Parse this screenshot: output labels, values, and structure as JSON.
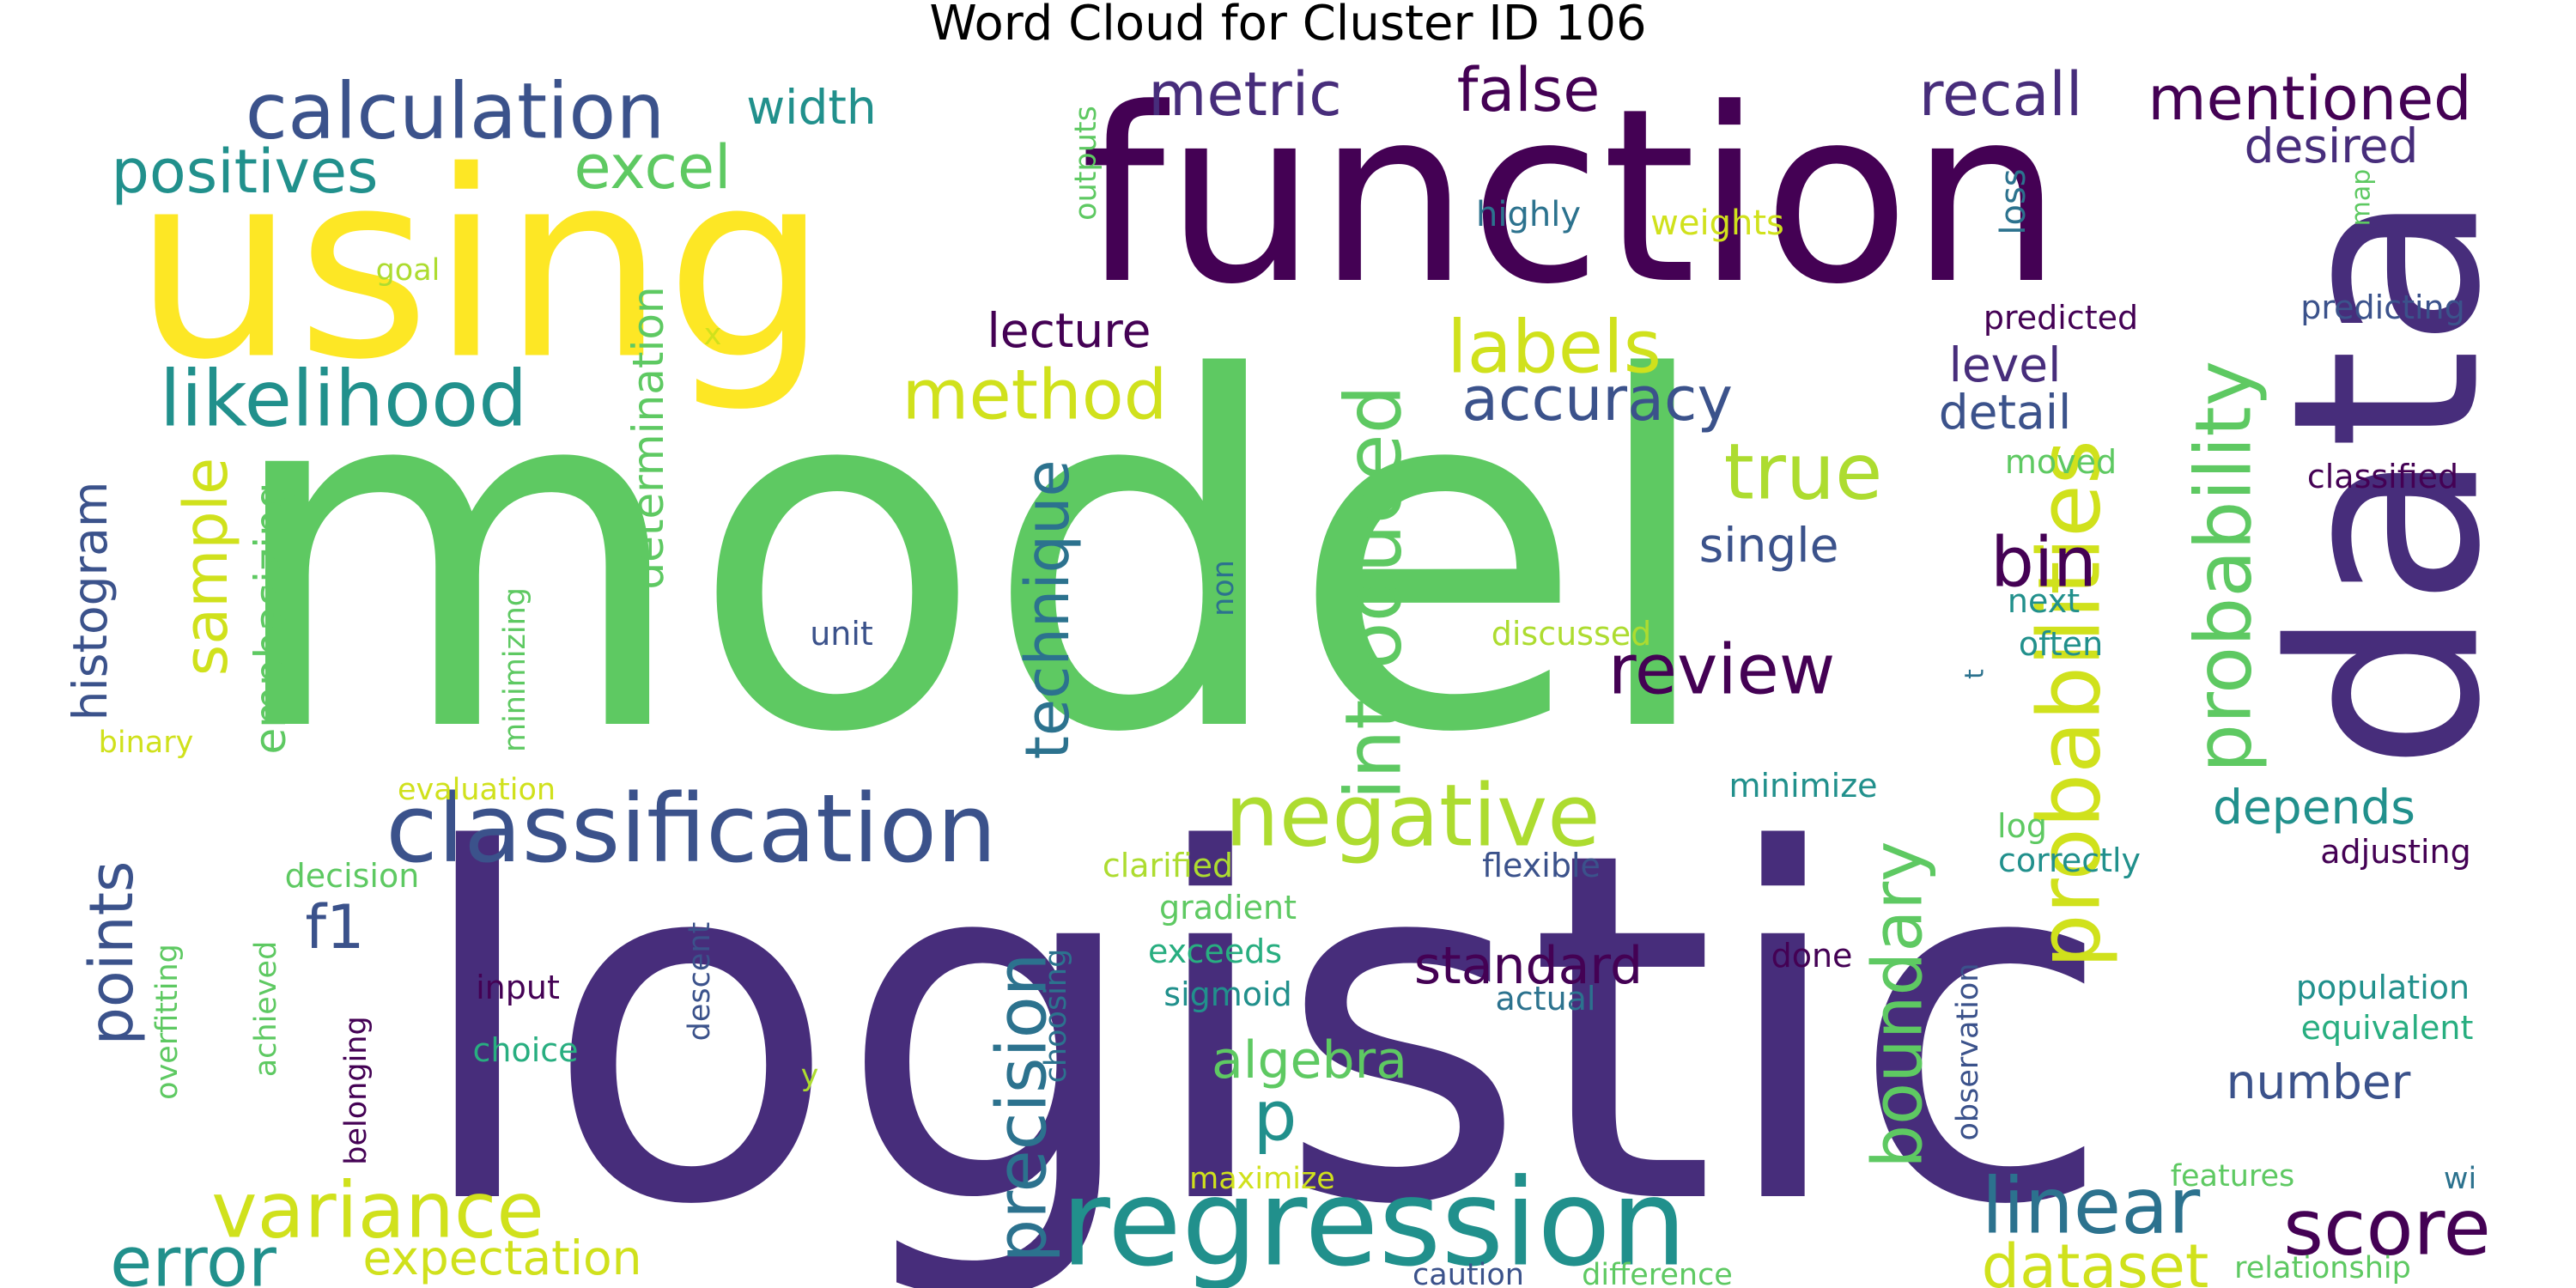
{
  "title": "Word Cloud for Cluster ID 106",
  "palette": {
    "dark_purple": "#440154",
    "indigo": "#472d7b",
    "blue_purple": "#3b528b",
    "steel_blue": "#2c728e",
    "teal": "#21908c",
    "green_teal": "#28ae80",
    "green": "#5ec962",
    "lime": "#addc30",
    "yellow": "#fde725"
  },
  "words": [
    {
      "text": "model",
      "color": "#5ec962"
    },
    {
      "text": "logistic",
      "color": "#472d7b"
    },
    {
      "text": "function",
      "color": "#440154"
    },
    {
      "text": "using",
      "color": "#fde725"
    },
    {
      "text": "data",
      "color": "#472d7b"
    },
    {
      "text": "regression",
      "color": "#21908c"
    },
    {
      "text": "classification",
      "color": "#3b528b"
    },
    {
      "text": "negative",
      "color": "#addc30"
    },
    {
      "text": "probabilities",
      "color": "#d0e11c"
    },
    {
      "text": "probability",
      "color": "#5ec962"
    },
    {
      "text": "calculation",
      "color": "#3b528b"
    },
    {
      "text": "likelihood",
      "color": "#21908c"
    },
    {
      "text": "method",
      "color": "#d0e11c"
    },
    {
      "text": "introduced",
      "color": "#5ec962"
    },
    {
      "text": "review",
      "color": "#440154"
    },
    {
      "text": "labels",
      "color": "#d0e11c"
    },
    {
      "text": "accuracy",
      "color": "#3b528b"
    },
    {
      "text": "true",
      "color": "#addc30"
    },
    {
      "text": "bin",
      "color": "#440154"
    },
    {
      "text": "score",
      "color": "#440154"
    },
    {
      "text": "linear",
      "color": "#2c728e"
    },
    {
      "text": "variance",
      "color": "#d0e11c"
    },
    {
      "text": "error",
      "color": "#21908c"
    },
    {
      "text": "precision",
      "color": "#2c728e"
    },
    {
      "text": "technique",
      "color": "#2c728e"
    },
    {
      "text": "boundary",
      "color": "#5ec962"
    },
    {
      "text": "dataset",
      "color": "#d0e11c"
    },
    {
      "text": "metric",
      "color": "#472d7b"
    },
    {
      "text": "false",
      "color": "#440154"
    },
    {
      "text": "recall",
      "color": "#472d7b"
    },
    {
      "text": "mentioned",
      "color": "#440154"
    },
    {
      "text": "positives",
      "color": "#21908c"
    },
    {
      "text": "excel",
      "color": "#5ec962"
    },
    {
      "text": "sample",
      "color": "#d0e11c"
    },
    {
      "text": "points",
      "color": "#3b528b"
    },
    {
      "text": "standard",
      "color": "#440154"
    },
    {
      "text": "algebra",
      "color": "#5ec962"
    },
    {
      "text": "p",
      "color": "#21908c"
    },
    {
      "text": "f1",
      "color": "#3b528b"
    },
    {
      "text": "expectation",
      "color": "#d0e11c"
    },
    {
      "text": "width",
      "color": "#21908c"
    },
    {
      "text": "lecture",
      "color": "#440154"
    },
    {
      "text": "desired",
      "color": "#472d7b"
    },
    {
      "text": "level",
      "color": "#472d7b"
    },
    {
      "text": "detail",
      "color": "#3b528b"
    },
    {
      "text": "single",
      "color": "#3b528b"
    },
    {
      "text": "depends",
      "color": "#21908c"
    },
    {
      "text": "number",
      "color": "#3b528b"
    },
    {
      "text": "histogram",
      "color": "#3b528b"
    },
    {
      "text": "emphasizing",
      "color": "#5ec962"
    },
    {
      "text": "determination",
      "color": "#5ec962"
    },
    {
      "text": "minimizing",
      "color": "#5ec962"
    },
    {
      "text": "highly",
      "color": "#2c728e"
    },
    {
      "text": "weights",
      "color": "#d0e11c"
    },
    {
      "text": "loss",
      "color": "#2c728e"
    },
    {
      "text": "map",
      "color": "#5ec962"
    },
    {
      "text": "outputs",
      "color": "#5ec962"
    },
    {
      "text": "goal",
      "color": "#addc30"
    },
    {
      "text": "x",
      "color": "#d0e11c"
    },
    {
      "text": "predicted",
      "color": "#440154"
    },
    {
      "text": "predicting",
      "color": "#3b528b"
    },
    {
      "text": "moved",
      "color": "#5ec962"
    },
    {
      "text": "classified",
      "color": "#440154"
    },
    {
      "text": "next",
      "color": "#21908c"
    },
    {
      "text": "often",
      "color": "#21908c"
    },
    {
      "text": "t",
      "color": "#2c728e"
    },
    {
      "text": "unit",
      "color": "#3b528b"
    },
    {
      "text": "non",
      "color": "#2c728e"
    },
    {
      "text": "discussed",
      "color": "#addc30"
    },
    {
      "text": "binary",
      "color": "#d0e11c"
    },
    {
      "text": "evaluation",
      "color": "#d0e11c"
    },
    {
      "text": "minimize",
      "color": "#21908c"
    },
    {
      "text": "decision",
      "color": "#5ec962"
    },
    {
      "text": "clarified",
      "color": "#addc30"
    },
    {
      "text": "flexible",
      "color": "#3b528b"
    },
    {
      "text": "log",
      "color": "#5ec962"
    },
    {
      "text": "correctly",
      "color": "#21908c"
    },
    {
      "text": "adjusting",
      "color": "#440154"
    },
    {
      "text": "gradient",
      "color": "#5ec962"
    },
    {
      "text": "exceeds",
      "color": "#28ae80"
    },
    {
      "text": "sigmoid",
      "color": "#21908c"
    },
    {
      "text": "actual",
      "color": "#2c728e"
    },
    {
      "text": "done",
      "color": "#440154"
    },
    {
      "text": "input",
      "color": "#440154"
    },
    {
      "text": "choice",
      "color": "#28ae80"
    },
    {
      "text": "descent",
      "color": "#3b528b"
    },
    {
      "text": "choosing",
      "color": "#2c728e"
    },
    {
      "text": "achieved",
      "color": "#5ec962"
    },
    {
      "text": "belonging",
      "color": "#440154"
    },
    {
      "text": "overfitting",
      "color": "#5ec962"
    },
    {
      "text": "y",
      "color": "#addc30"
    },
    {
      "text": "observation",
      "color": "#3b528b"
    },
    {
      "text": "population",
      "color": "#21908c"
    },
    {
      "text": "equivalent",
      "color": "#28ae80"
    },
    {
      "text": "maximize",
      "color": "#d0e11c"
    },
    {
      "text": "features",
      "color": "#5ec962"
    },
    {
      "text": "wi",
      "color": "#2c728e"
    },
    {
      "text": "caution",
      "color": "#3b528b"
    },
    {
      "text": "difference",
      "color": "#5ec962"
    },
    {
      "text": "relationship",
      "color": "#5ec962"
    }
  ]
}
